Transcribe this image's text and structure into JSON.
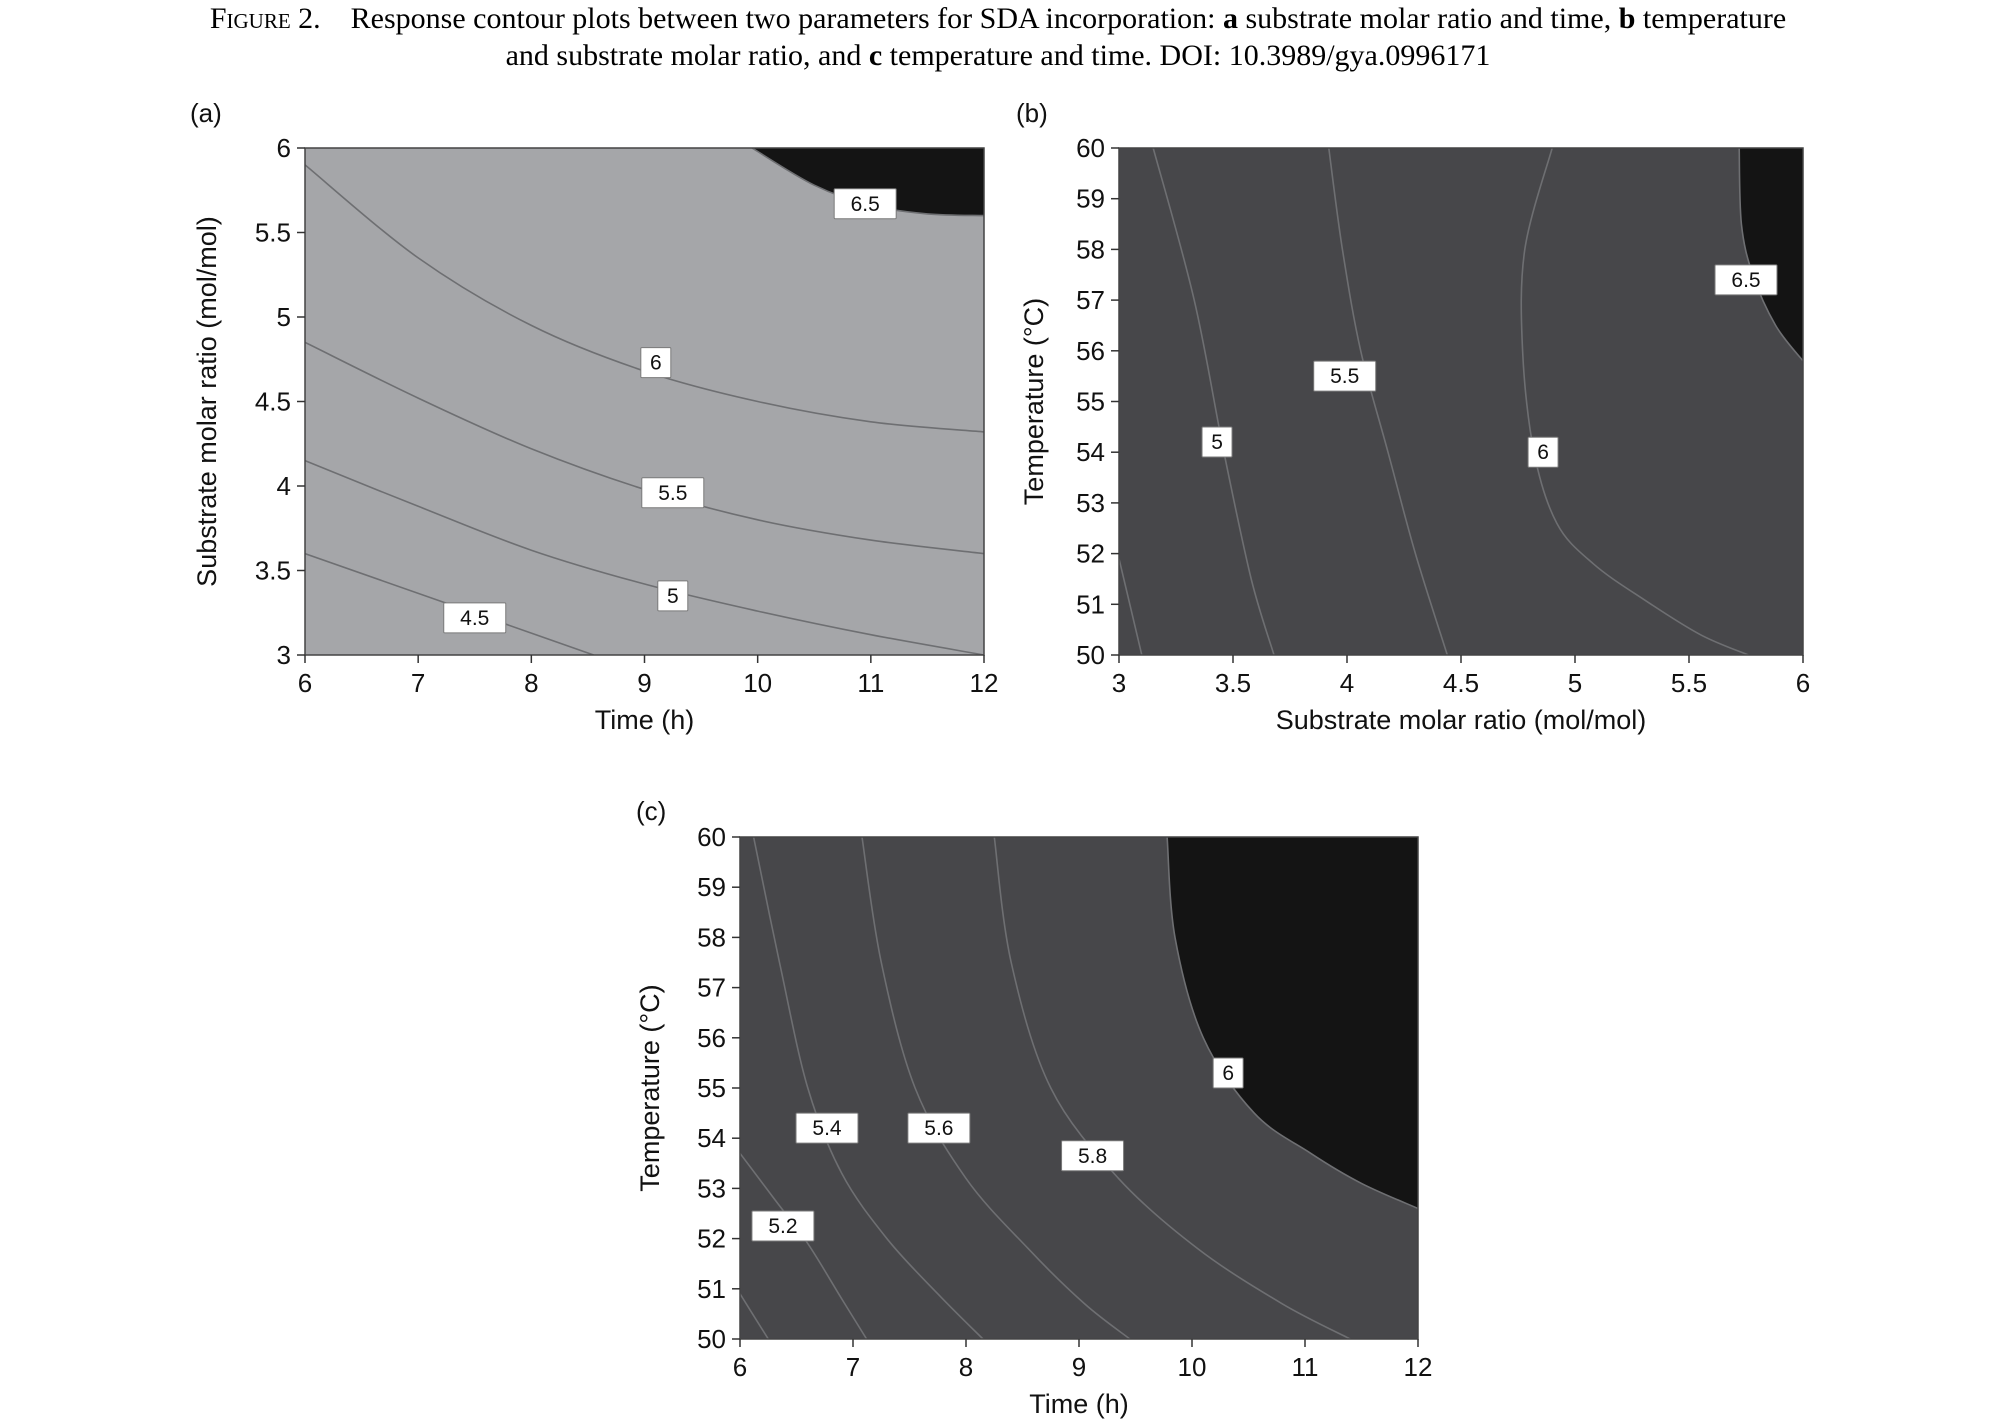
{
  "caption": {
    "figure_label": "Figure 2.",
    "pre_a": "Response contour plots between two parameters for SDA incorporation:",
    "a_letter": "a",
    "a_text": "substrate molar ratio and time,",
    "b_letter": "b",
    "b_text_1": "temperature",
    "b_text_2": "and substrate molar ratio, and",
    "c_letter": "c",
    "c_text": "temperature and time. DOI: 10.3989/gya.0996171"
  },
  "chart_data": [
    {
      "type": "contour",
      "panel_label": "(a)",
      "xlabel": "Time (h)",
      "ylabel": "Substrate molar ratio (mol/mol)",
      "xlim": [
        6,
        12
      ],
      "ylim": [
        3,
        6
      ],
      "xticks": [
        "6",
        "7",
        "8",
        "9",
        "10",
        "11",
        "12"
      ],
      "yticks": [
        "3",
        "3.5",
        "4",
        "4.5",
        "5",
        "5.5",
        "6"
      ],
      "contours": [
        {
          "level": "4.5",
          "x": [
            6,
            8.55
          ],
          "y": [
            3.6,
            3.0
          ]
        },
        {
          "level": "5",
          "x": [
            6,
            7,
            8,
            9,
            10,
            11,
            12
          ],
          "y": [
            4.15,
            3.88,
            3.62,
            3.42,
            3.26,
            3.12,
            3.0
          ]
        },
        {
          "level": "5.5",
          "x": [
            6,
            7,
            8,
            9,
            10,
            11,
            12
          ],
          "y": [
            4.85,
            4.52,
            4.22,
            3.98,
            3.8,
            3.68,
            3.6
          ]
        },
        {
          "level": "6",
          "x": [
            6,
            7,
            8,
            9,
            10,
            11,
            12
          ],
          "y": [
            5.9,
            5.35,
            4.95,
            4.68,
            4.5,
            4.38,
            4.32
          ]
        },
        {
          "level": "6.5",
          "x": [
            9.95,
            10.5,
            11,
            11.5,
            12
          ],
          "y": [
            6.0,
            5.78,
            5.66,
            5.61,
            5.6
          ]
        }
      ],
      "labels": [
        {
          "text": "4.5",
          "x": 7.5,
          "y": 3.22
        },
        {
          "text": "5",
          "x": 9.25,
          "y": 3.35
        },
        {
          "text": "5.5",
          "x": 9.25,
          "y": 3.96
        },
        {
          "text": "6",
          "x": 9.1,
          "y": 4.73
        },
        {
          "text": "6.5",
          "x": 10.95,
          "y": 5.67
        }
      ]
    },
    {
      "type": "contour",
      "panel_label": "(b)",
      "xlabel": "Substrate molar ratio (mol/mol)",
      "ylabel": "Temperature (°C)",
      "xlim": [
        3,
        6
      ],
      "ylim": [
        50,
        60
      ],
      "xticks": [
        "3",
        "3.5",
        "4",
        "4.5",
        "5",
        "5.5",
        "6"
      ],
      "yticks": [
        "50",
        "51",
        "52",
        "53",
        "54",
        "55",
        "56",
        "57",
        "58",
        "59",
        "60"
      ],
      "contours": [
        {
          "level": "4.5",
          "x": [
            3.0,
            3.1
          ],
          "y": [
            51.9,
            50
          ]
        },
        {
          "level": "5",
          "x": [
            3.15,
            3.33,
            3.46,
            3.58,
            3.68
          ],
          "y": [
            60,
            57,
            54,
            51.5,
            50
          ]
        },
        {
          "level": "5.5",
          "x": [
            3.92,
            3.98,
            4.06,
            4.18,
            4.3,
            4.44
          ],
          "y": [
            60,
            58,
            56,
            54,
            52,
            50
          ]
        },
        {
          "level": "6",
          "x": [
            4.9,
            4.78,
            4.77,
            4.82,
            4.92,
            5.08,
            5.3,
            5.55,
            5.76
          ],
          "y": [
            60,
            58,
            56,
            54,
            52.6,
            51.8,
            51.1,
            50.4,
            50
          ]
        },
        {
          "level": "6.5",
          "x": [
            5.72,
            5.73,
            5.78,
            5.88,
            6.0
          ],
          "y": [
            60,
            58.5,
            57.5,
            56.5,
            55.8
          ]
        }
      ],
      "labels": [
        {
          "text": "5",
          "x": 3.43,
          "y": 54.2
        },
        {
          "text": "5.5",
          "x": 3.99,
          "y": 55.5
        },
        {
          "text": "6",
          "x": 4.86,
          "y": 54.0
        },
        {
          "text": "6.5",
          "x": 5.75,
          "y": 57.4
        }
      ]
    },
    {
      "type": "contour",
      "panel_label": "(c)",
      "xlabel": "Time (h)",
      "ylabel": "Temperature (°C)",
      "xlim": [
        6,
        12
      ],
      "ylim": [
        50,
        60
      ],
      "xticks": [
        "6",
        "7",
        "8",
        "9",
        "10",
        "11",
        "12"
      ],
      "yticks": [
        "50",
        "51",
        "52",
        "53",
        "54",
        "55",
        "56",
        "57",
        "58",
        "59",
        "60"
      ],
      "contours": [
        {
          "level": "5",
          "x": [
            6,
            6.25
          ],
          "y": [
            50.9,
            50
          ]
        },
        {
          "level": "5.2",
          "x": [
            6,
            6.3,
            6.6,
            6.9,
            7.12
          ],
          "y": [
            53.7,
            52.8,
            51.9,
            50.8,
            50
          ]
        },
        {
          "level": "5.4",
          "x": [
            6.12,
            6.35,
            6.6,
            6.9,
            7.3,
            7.75,
            8.15
          ],
          "y": [
            60,
            57.5,
            55,
            53.3,
            52,
            50.9,
            50
          ]
        },
        {
          "level": "5.6",
          "x": [
            7.08,
            7.25,
            7.55,
            8.0,
            8.55,
            9.05,
            9.45
          ],
          "y": [
            60,
            57.5,
            55,
            53.2,
            51.8,
            50.7,
            50
          ]
        },
        {
          "level": "5.8",
          "x": [
            8.25,
            8.4,
            8.75,
            9.35,
            10.05,
            10.8,
            11.4
          ],
          "y": [
            60,
            57.5,
            55,
            53.2,
            51.8,
            50.7,
            50
          ]
        },
        {
          "level": "6",
          "x": [
            9.78,
            9.85,
            10.1,
            10.55,
            11.05,
            11.5,
            12.0
          ],
          "y": [
            60,
            58,
            56,
            54.5,
            53.7,
            53.1,
            52.6
          ]
        }
      ],
      "labels": [
        {
          "text": "5.2",
          "x": 6.38,
          "y": 52.25
        },
        {
          "text": "5.4",
          "x": 6.77,
          "y": 54.2
        },
        {
          "text": "5.6",
          "x": 7.76,
          "y": 54.2
        },
        {
          "text": "5.8",
          "x": 9.12,
          "y": 53.65
        },
        {
          "text": "6",
          "x": 10.32,
          "y": 55.3
        }
      ]
    }
  ]
}
